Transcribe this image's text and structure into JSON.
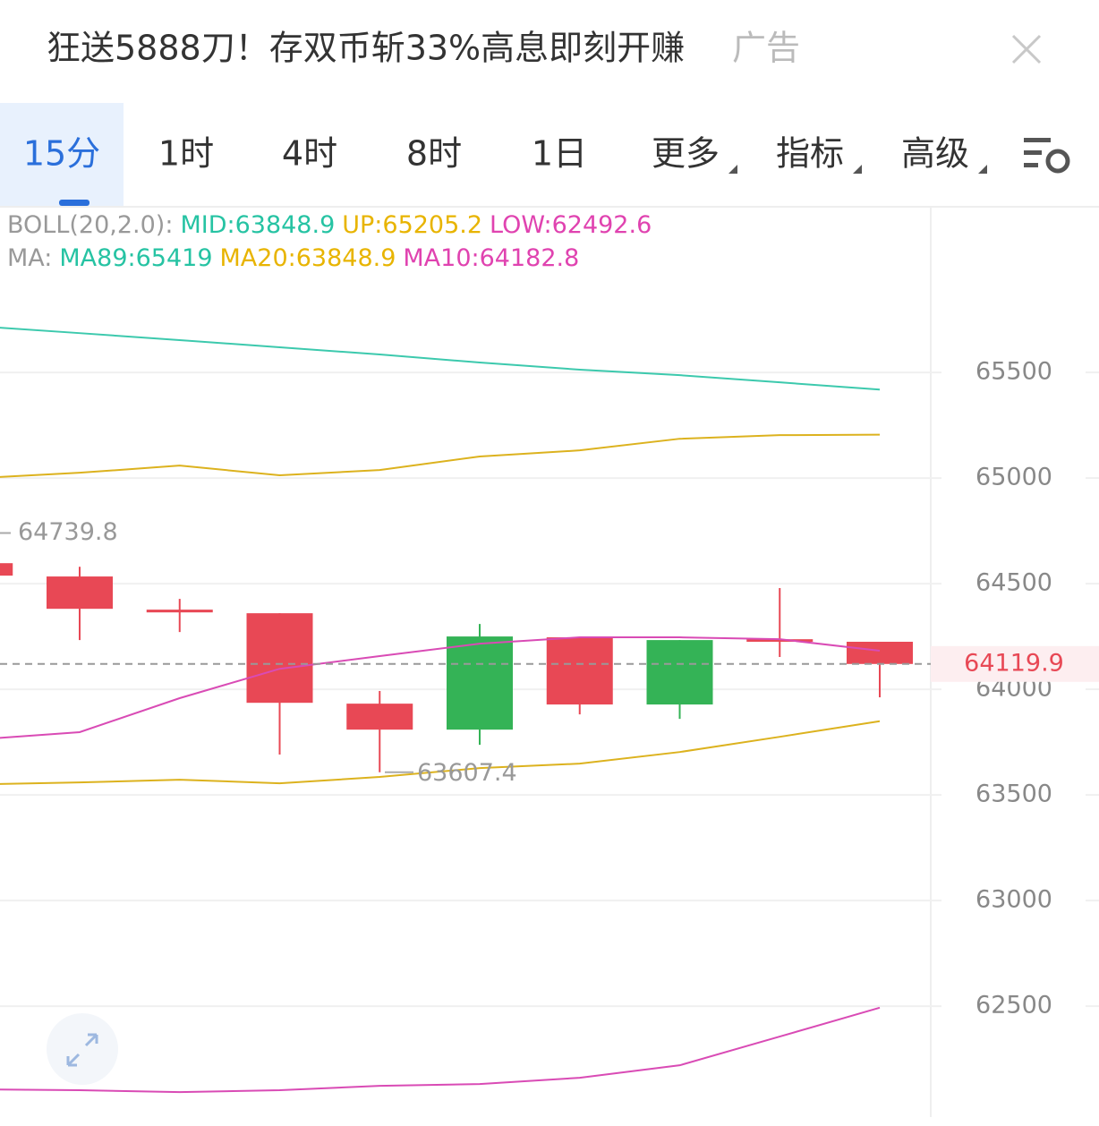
{
  "ad": {
    "text": "狂送5888刀！存双币斩33%高息即刻开赚",
    "tag": "广告"
  },
  "tabs": [
    "15分",
    "1时",
    "4时",
    "8时",
    "1日",
    "更多",
    "指标",
    "高级"
  ],
  "indicators": [
    {
      "label": "BOLL(20,2.0):",
      "items": [
        {
          "name": "MID:",
          "value": 63848.9,
          "color": "#26c3a3"
        },
        {
          "name": "UP:",
          "value": 65205.2,
          "color": "#e8b400"
        },
        {
          "name": "LOW:",
          "value": 62492.6,
          "color": "#e043b0"
        }
      ]
    },
    {
      "label": "MA:",
      "items": [
        {
          "name": "MA89:",
          "value": 65419.0,
          "color": "#26c3a3"
        },
        {
          "name": "MA20:",
          "value": 63848.9,
          "color": "#e8b400"
        },
        {
          "name": "MA10:",
          "value": 64182.8,
          "color": "#e043b0"
        }
      ]
    }
  ],
  "chart_data": {
    "type": "candlestick",
    "categories": [
      null,
      null,
      null,
      null,
      null,
      null,
      null,
      null,
      null,
      null
    ],
    "open": [
      64597,
      64534,
      64377,
      64360,
      63932,
      63809,
      64246,
      63928,
      64237,
      64225
    ],
    "high": [
      64597,
      64580,
      64428,
      64360,
      63992,
      64309,
      64246,
      64233,
      64479,
      64225
    ],
    "low": [
      64538,
      64233,
      64271,
      63691,
      63607.4,
      63737,
      63881,
      63860,
      64153,
      63962
    ],
    "close": [
      64538,
      64381,
      64364,
      63936,
      63809,
      64250,
      63928,
      64233,
      64225,
      64119.9
    ],
    "up_color": "#34b356",
    "down_color": "#e84855",
    "series": [
      {
        "color": "#3cc9ad",
        "values": [
          65718,
          65686,
          65653,
          65619,
          65585,
          65547,
          65513,
          65487,
          65453,
          65419
        ]
      },
      {
        "color": "#dcb21e",
        "values": [
          65000,
          65025,
          65059,
          65013,
          65038,
          65102,
          65131,
          65186,
          65203,
          65205.2
        ]
      },
      {
        "color": "#dcb21e",
        "values": [
          63550,
          63559,
          63572,
          63555,
          63585,
          63627,
          63648,
          63703,
          63775,
          63848.9
        ]
      },
      {
        "color": "#d94bb5",
        "values": [
          63763,
          63797,
          63958,
          64097,
          64157,
          64216,
          64246,
          64246,
          64237,
          64182.8
        ]
      },
      {
        "color": "#d94bb5",
        "values": [
          62106,
          62102,
          62093,
          62102,
          62123,
          62131,
          62161,
          62220,
          62356,
          62492.6
        ]
      }
    ],
    "high_label": 64739.8,
    "low_label": 63607.4,
    "last_price": 64119.9,
    "ylim": [
      61975,
      66280
    ],
    "yticks": [
      62500,
      63000,
      63500,
      64000,
      64500,
      65000,
      65500
    ],
    "grid": true
  }
}
